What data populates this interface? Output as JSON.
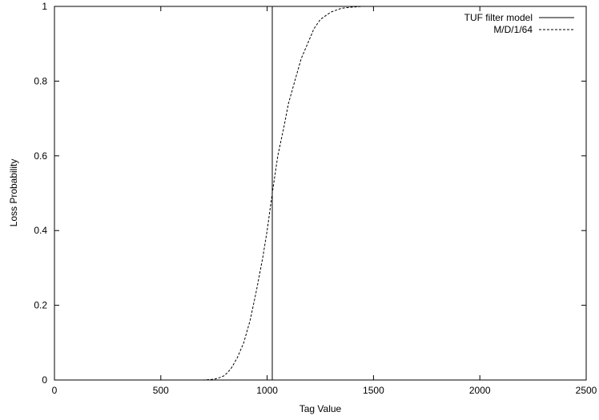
{
  "chart_data": {
    "type": "line",
    "xlabel": "Tag Value",
    "ylabel": "Loss Probability",
    "xlim": [
      0,
      2500
    ],
    "ylim": [
      0,
      1
    ],
    "xticks": [
      0,
      500,
      1000,
      1500,
      2000,
      2500
    ],
    "yticks": [
      0,
      0.2,
      0.4,
      0.6,
      0.8,
      1
    ],
    "xtick_labels": [
      "0",
      "500",
      "1000",
      "1500",
      "2000",
      "2500"
    ],
    "ytick_labels": [
      "0",
      "0.2",
      "0.4",
      "0.6",
      "0.8",
      "1"
    ],
    "grid": false,
    "legend_position": "top-right",
    "series": [
      {
        "name": "TUF filter model",
        "style": "solid",
        "color": "#000000",
        "x": [
          1024,
          1024
        ],
        "y": [
          0,
          1
        ]
      },
      {
        "name": "M/D/1/64",
        "style": "dashed",
        "color": "#000000",
        "x": [
          0,
          700,
          750,
          780,
          800,
          830,
          860,
          890,
          920,
          950,
          980,
          1000,
          1024,
          1050,
          1080,
          1100,
          1130,
          1160,
          1190,
          1220,
          1250,
          1300,
          1350,
          1400,
          1450,
          1500,
          2500
        ],
        "y": [
          0,
          0,
          0.002,
          0.007,
          0.012,
          0.03,
          0.06,
          0.1,
          0.16,
          0.24,
          0.33,
          0.4,
          0.5,
          0.6,
          0.68,
          0.74,
          0.8,
          0.86,
          0.9,
          0.94,
          0.965,
          0.985,
          0.995,
          0.998,
          1,
          1,
          1
        ]
      }
    ]
  }
}
